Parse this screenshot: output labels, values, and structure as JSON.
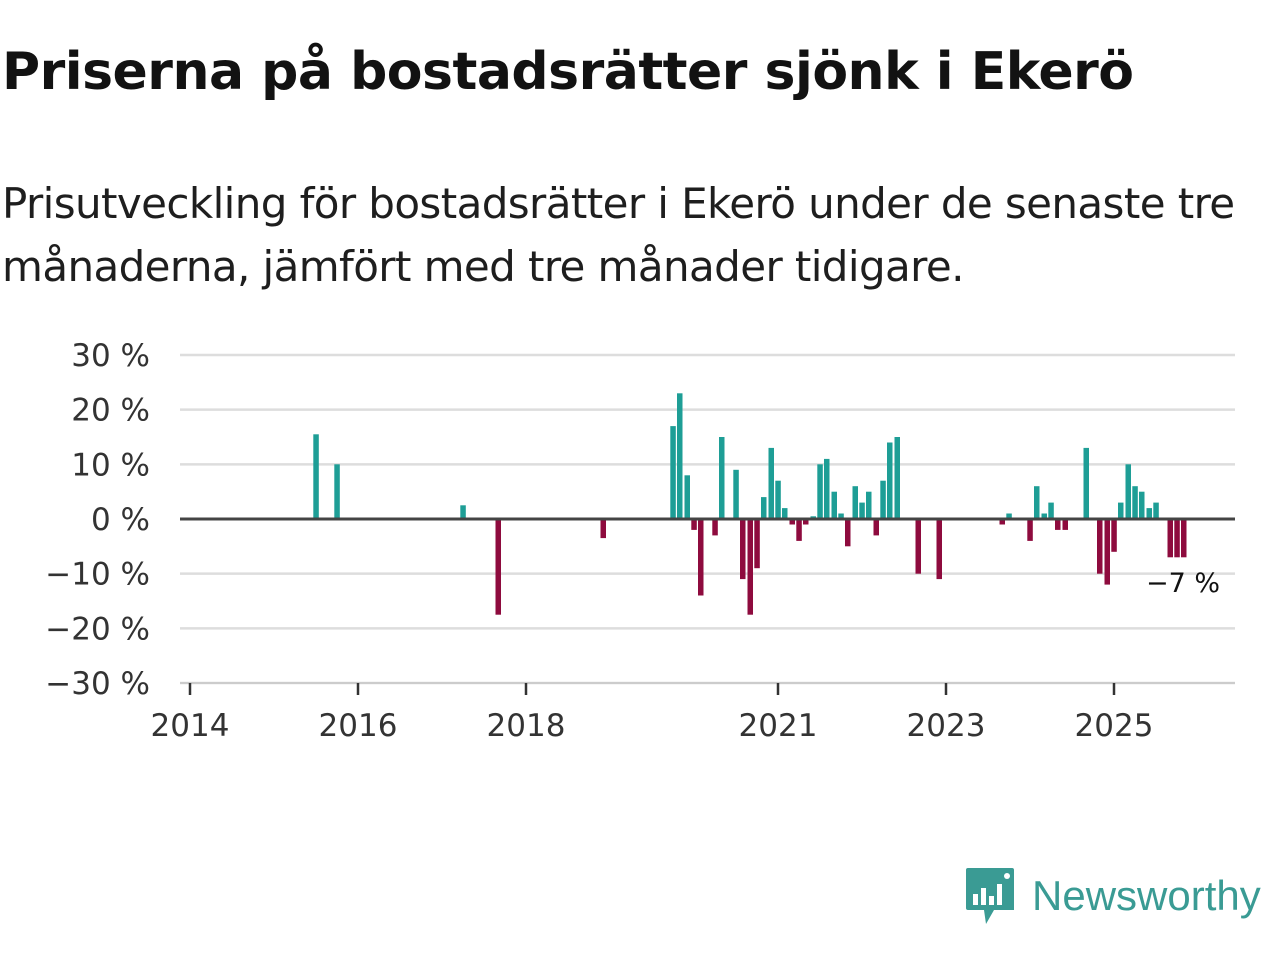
{
  "title": "Priserna på bostadsrätter sjönk i Ekerö",
  "subtitle": "Prisutveckling för bostadsrätter i Ekerö under de senaste tre månaderna, jämfört med tre månader tidigare.",
  "brand": {
    "name": "Newsworthy",
    "color": "#3a9b94"
  },
  "colors": {
    "positive": "#1e9e96",
    "negative": "#8e0b3e",
    "grid": "#dddddd",
    "axis": "#444444"
  },
  "chart_data": {
    "type": "bar",
    "title": "Priserna på bostadsrätter sjönk i Ekerö",
    "xlabel": "",
    "ylabel": "",
    "ylim": [
      -30,
      30
    ],
    "xlim": [
      2014.0,
      2026.5
    ],
    "grid": true,
    "y_ticks": [
      {
        "value": 30,
        "label": "30 %"
      },
      {
        "value": 20,
        "label": "20 %"
      },
      {
        "value": 10,
        "label": "10 %"
      },
      {
        "value": 0,
        "label": "0 %"
      },
      {
        "value": -10,
        "label": "−10 %"
      },
      {
        "value": -20,
        "label": "−20 %"
      },
      {
        "value": -30,
        "label": "−30 %"
      }
    ],
    "x_ticks": [
      {
        "value": 2014.0,
        "label": "2014"
      },
      {
        "value": 2016.0,
        "label": "2016"
      },
      {
        "value": 2018.0,
        "label": "2018"
      },
      {
        "value": 2021.0,
        "label": "2021"
      },
      {
        "value": 2023.0,
        "label": "2023"
      },
      {
        "value": 2025.0,
        "label": "2025"
      }
    ],
    "annotation": {
      "label": "−7 %",
      "x": 2025.83,
      "y": -7
    },
    "series": [
      {
        "name": "Prisutveckling",
        "points": [
          {
            "x": 2015.5,
            "y": 15.5
          },
          {
            "x": 2015.75,
            "y": 10
          },
          {
            "x": 2017.25,
            "y": 2.5
          },
          {
            "x": 2017.67,
            "y": -17.5
          },
          {
            "x": 2018.92,
            "y": -3.5
          },
          {
            "x": 2019.75,
            "y": 17
          },
          {
            "x": 2019.83,
            "y": 23
          },
          {
            "x": 2019.92,
            "y": 8
          },
          {
            "x": 2020.0,
            "y": -2
          },
          {
            "x": 2020.08,
            "y": -14
          },
          {
            "x": 2020.25,
            "y": -3
          },
          {
            "x": 2020.33,
            "y": 15
          },
          {
            "x": 2020.5,
            "y": 9
          },
          {
            "x": 2020.58,
            "y": -11
          },
          {
            "x": 2020.67,
            "y": -17.5
          },
          {
            "x": 2020.75,
            "y": -9
          },
          {
            "x": 2020.83,
            "y": 4
          },
          {
            "x": 2020.92,
            "y": 13
          },
          {
            "x": 2021.0,
            "y": 7
          },
          {
            "x": 2021.08,
            "y": 2
          },
          {
            "x": 2021.17,
            "y": -1
          },
          {
            "x": 2021.25,
            "y": -4
          },
          {
            "x": 2021.33,
            "y": -1
          },
          {
            "x": 2021.42,
            "y": 0.5
          },
          {
            "x": 2021.5,
            "y": 10
          },
          {
            "x": 2021.58,
            "y": 11
          },
          {
            "x": 2021.67,
            "y": 5
          },
          {
            "x": 2021.75,
            "y": 1
          },
          {
            "x": 2021.83,
            "y": -5
          },
          {
            "x": 2021.92,
            "y": 6
          },
          {
            "x": 2022.0,
            "y": 3
          },
          {
            "x": 2022.08,
            "y": 5
          },
          {
            "x": 2022.17,
            "y": -3
          },
          {
            "x": 2022.25,
            "y": 7
          },
          {
            "x": 2022.33,
            "y": 14
          },
          {
            "x": 2022.42,
            "y": 15
          },
          {
            "x": 2022.67,
            "y": -10
          },
          {
            "x": 2022.92,
            "y": -11
          },
          {
            "x": 2023.67,
            "y": -1
          },
          {
            "x": 2023.75,
            "y": 1
          },
          {
            "x": 2024.0,
            "y": -4
          },
          {
            "x": 2024.08,
            "y": 6
          },
          {
            "x": 2024.17,
            "y": 1
          },
          {
            "x": 2024.25,
            "y": 3
          },
          {
            "x": 2024.33,
            "y": -2
          },
          {
            "x": 2024.42,
            "y": -2
          },
          {
            "x": 2024.67,
            "y": 13
          },
          {
            "x": 2024.83,
            "y": -10
          },
          {
            "x": 2024.92,
            "y": -12
          },
          {
            "x": 2025.0,
            "y": -6
          },
          {
            "x": 2025.08,
            "y": 3
          },
          {
            "x": 2025.17,
            "y": 10
          },
          {
            "x": 2025.25,
            "y": 6
          },
          {
            "x": 2025.33,
            "y": 5
          },
          {
            "x": 2025.42,
            "y": 2
          },
          {
            "x": 2025.5,
            "y": 3
          },
          {
            "x": 2025.67,
            "y": -7
          },
          {
            "x": 2025.75,
            "y": -7
          },
          {
            "x": 2025.83,
            "y": -7
          }
        ]
      }
    ]
  }
}
